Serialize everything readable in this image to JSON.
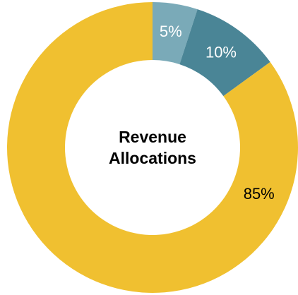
{
  "chart_data": {
    "type": "donut",
    "title": "Revenue Allocations",
    "categories": [
      null,
      null,
      null
    ],
    "values": [
      5,
      10,
      85
    ],
    "value_labels": [
      "5%",
      "10%",
      "85%"
    ],
    "colors": [
      "#7aaab8",
      "#4a8596",
      "#f0c030"
    ],
    "label_colors": [
      "#ffffff",
      "#ffffff",
      "#000000"
    ]
  }
}
